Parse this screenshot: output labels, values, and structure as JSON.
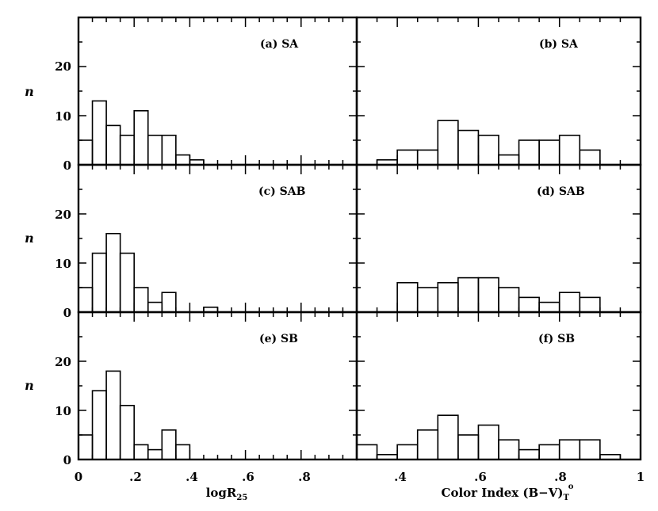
{
  "chart_data": [
    {
      "type": "histogram",
      "panel": "a",
      "label": "(a) SA",
      "ylabel": "n",
      "xlim": [
        0,
        1
      ],
      "ylim": [
        0,
        30
      ],
      "bin_edges": [
        0.0,
        0.05,
        0.1,
        0.15,
        0.2,
        0.25,
        0.3,
        0.35,
        0.4,
        0.45,
        0.5
      ],
      "counts": [
        5,
        13,
        8,
        6,
        11,
        6,
        6,
        2,
        1,
        0
      ]
    },
    {
      "type": "histogram",
      "panel": "b",
      "label": "(b) SA",
      "ylabel": "",
      "xlim": [
        0.3,
        1
      ],
      "ylim": [
        0,
        30
      ],
      "bin_edges": [
        0.35,
        0.4,
        0.45,
        0.5,
        0.55,
        0.6,
        0.65,
        0.7,
        0.75,
        0.8,
        0.85,
        0.9
      ],
      "counts": [
        1,
        3,
        3,
        9,
        7,
        6,
        2,
        5,
        5,
        6,
        3
      ]
    },
    {
      "type": "histogram",
      "panel": "c",
      "label": "(c) SAB",
      "ylabel": "n",
      "xlim": [
        0,
        1
      ],
      "ylim": [
        0,
        30
      ],
      "bin_edges": [
        0.0,
        0.05,
        0.1,
        0.15,
        0.2,
        0.25,
        0.3,
        0.35,
        0.4,
        0.45,
        0.5,
        0.55
      ],
      "counts": [
        5,
        12,
        16,
        12,
        5,
        2,
        4,
        0,
        0,
        1,
        0
      ]
    },
    {
      "type": "histogram",
      "panel": "d",
      "label": "(d) SAB",
      "ylabel": "",
      "xlim": [
        0.3,
        1
      ],
      "ylim": [
        0,
        30
      ],
      "bin_edges": [
        0.4,
        0.45,
        0.5,
        0.55,
        0.6,
        0.65,
        0.7,
        0.75,
        0.8,
        0.85,
        0.9
      ],
      "counts": [
        6,
        5,
        6,
        7,
        7,
        5,
        3,
        2,
        4,
        3
      ]
    },
    {
      "type": "histogram",
      "panel": "e",
      "label": "(e) SB",
      "ylabel": "n",
      "xlim": [
        0,
        1
      ],
      "ylim": [
        0,
        30
      ],
      "bin_edges": [
        0.0,
        0.05,
        0.1,
        0.15,
        0.2,
        0.25,
        0.3,
        0.35,
        0.4
      ],
      "counts": [
        5,
        14,
        18,
        11,
        3,
        2,
        6,
        3
      ]
    },
    {
      "type": "histogram",
      "panel": "f",
      "label": "(f) SB",
      "ylabel": "",
      "xlim": [
        0.3,
        1
      ],
      "ylim": [
        0,
        30
      ],
      "bin_edges": [
        0.3,
        0.35,
        0.4,
        0.45,
        0.5,
        0.55,
        0.6,
        0.65,
        0.7,
        0.75,
        0.8,
        0.85,
        0.9,
        0.95
      ],
      "counts": [
        3,
        1,
        3,
        6,
        9,
        5,
        7,
        4,
        2,
        3,
        4,
        4,
        1
      ]
    }
  ],
  "axes": {
    "left": {
      "xlabel_main": "logR",
      "xlabel_sub": "25",
      "xticks": [
        "0",
        ".2",
        ".4",
        ".6",
        ".8"
      ]
    },
    "right": {
      "xlabel_main": "Color Index (B−V)",
      "xlabel_sub": "T",
      "xlabel_sup": "o",
      "xticks": [
        ".4",
        ".6",
        ".8",
        "1"
      ]
    },
    "yticks": [
      "0",
      "10",
      "20"
    ]
  }
}
